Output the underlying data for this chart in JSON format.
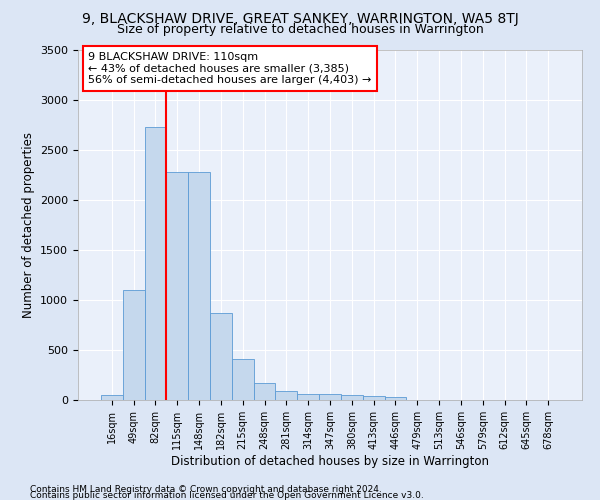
{
  "title": "9, BLACKSHAW DRIVE, GREAT SANKEY, WARRINGTON, WA5 8TJ",
  "subtitle": "Size of property relative to detached houses in Warrington",
  "xlabel": "Distribution of detached houses by size in Warrington",
  "ylabel": "Number of detached properties",
  "bin_labels": [
    "16sqm",
    "49sqm",
    "82sqm",
    "115sqm",
    "148sqm",
    "182sqm",
    "215sqm",
    "248sqm",
    "281sqm",
    "314sqm",
    "347sqm",
    "380sqm",
    "413sqm",
    "446sqm",
    "479sqm",
    "513sqm",
    "546sqm",
    "579sqm",
    "612sqm",
    "645sqm",
    "678sqm"
  ],
  "bar_values": [
    55,
    1100,
    2730,
    2280,
    2280,
    870,
    415,
    175,
    95,
    65,
    60,
    55,
    45,
    30,
    0,
    0,
    0,
    0,
    0,
    0,
    0
  ],
  "bar_color": "#c5d8ed",
  "bar_edge_color": "#5b9bd5",
  "vline_x_index": 2,
  "vline_color": "red",
  "annotation_text": "9 BLACKSHAW DRIVE: 110sqm\n← 43% of detached houses are smaller (3,385)\n56% of semi-detached houses are larger (4,403) →",
  "annotation_box_color": "white",
  "annotation_box_edge_color": "red",
  "ylim": [
    0,
    3500
  ],
  "yticks": [
    0,
    500,
    1000,
    1500,
    2000,
    2500,
    3000,
    3500
  ],
  "footer1": "Contains HM Land Registry data © Crown copyright and database right 2024.",
  "footer2": "Contains public sector information licensed under the Open Government Licence v3.0.",
  "bg_color": "#dce6f5",
  "plot_bg_color": "#eaf0fa",
  "title_fontsize": 10,
  "subtitle_fontsize": 9,
  "label_fontsize": 8.5
}
